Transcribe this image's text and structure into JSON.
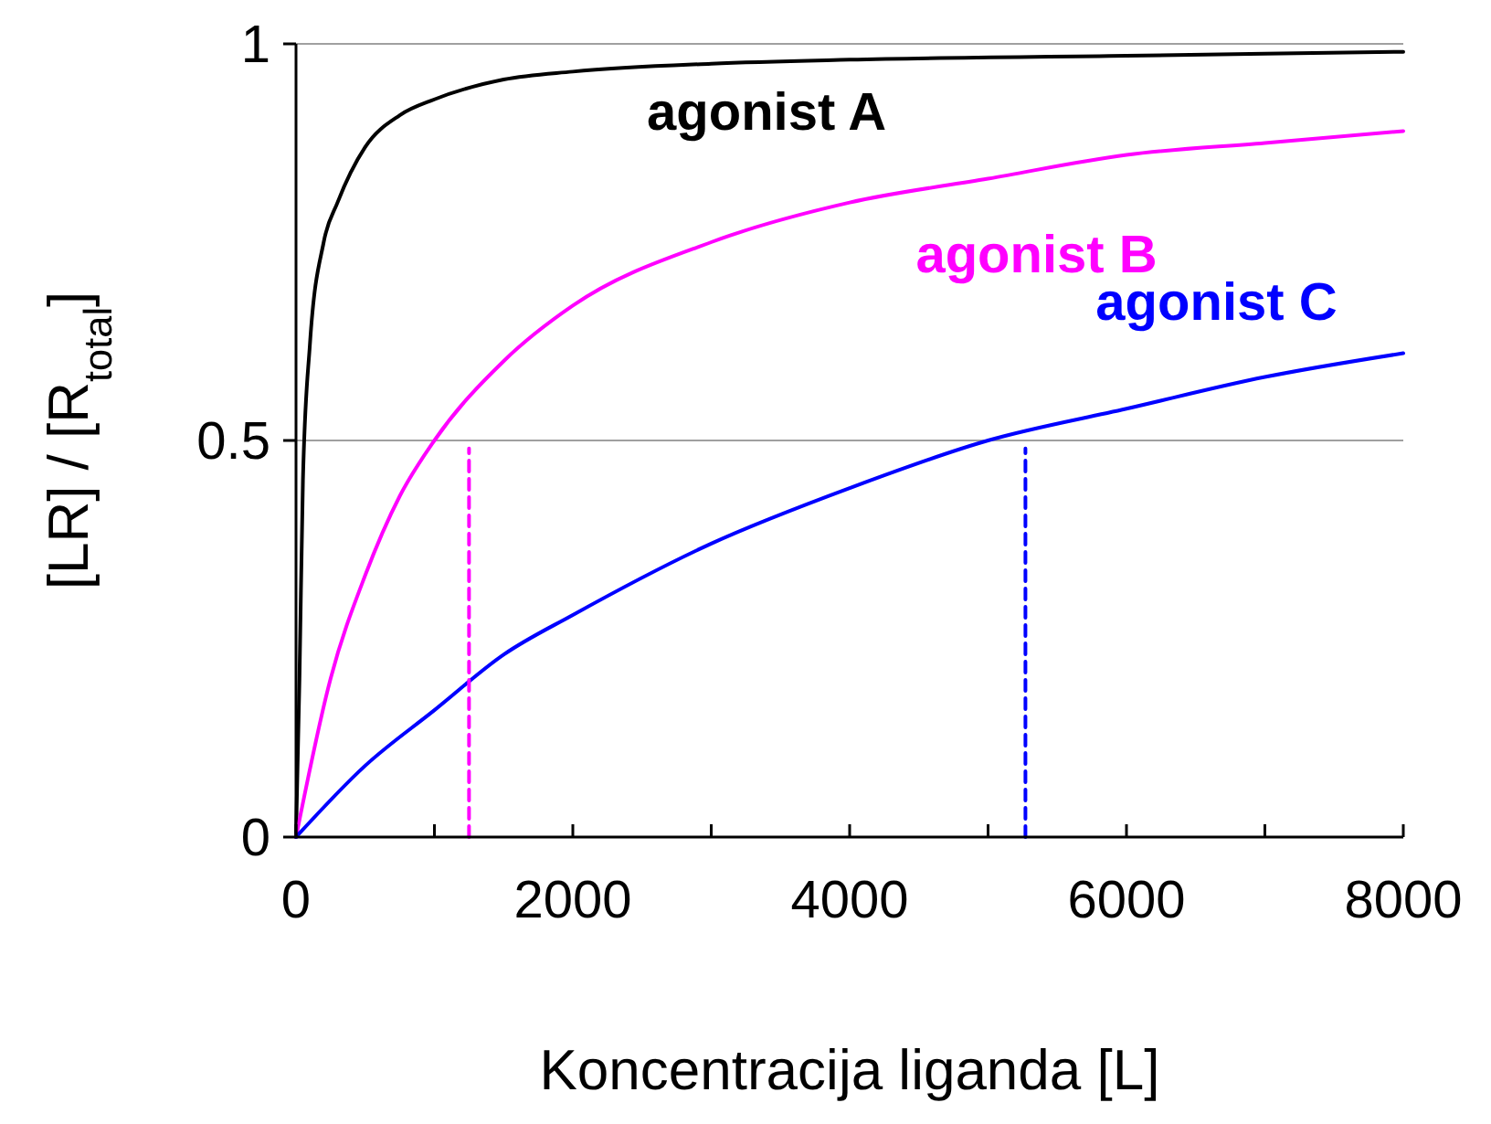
{
  "chart_data": {
    "type": "line",
    "xlabel": "Koncentracija liganda [L]",
    "ylabel": "[LR] / [R$_{total}$]",
    "xlim": [
      0,
      8000
    ],
    "ylim": [
      0,
      1
    ],
    "xticks": [
      0,
      {
        "value": 1000,
        "label": null
      },
      2000,
      {
        "value": 3000,
        "label": null
      },
      4000,
      {
        "value": 5000,
        "label": null
      },
      6000,
      {
        "value": 7000,
        "label": null
      },
      8000
    ],
    "yticks": [
      0,
      0.5,
      1
    ],
    "grid": "y",
    "legend": false,
    "marker": "none",
    "series": [
      {
        "name": "agonist A",
        "color": "#000000",
        "x": [
          0,
          25,
          50,
          100,
          200,
          300,
          500,
          750,
          1000,
          1500,
          2000,
          3000,
          4000,
          6000,
          8000
        ],
        "values": [
          0,
          0.2,
          0.45,
          0.62,
          0.75,
          0.8,
          0.87,
          0.91,
          0.93,
          0.955,
          0.965,
          0.975,
          0.98,
          0.985,
          0.99
        ]
      },
      {
        "name": "agonist B",
        "color": "#ff00ff",
        "x": [
          0,
          250,
          500,
          750,
          1000,
          1500,
          2000,
          3000,
          4000,
          5000,
          6000,
          7000,
          8000
        ],
        "values": [
          0,
          0.2,
          0.33,
          0.43,
          0.5,
          0.6,
          0.67,
          0.75,
          0.8,
          0.83,
          0.86,
          0.875,
          0.89
        ]
      },
      {
        "name": "agonist C",
        "color": "#0000ff",
        "x": [
          0,
          500,
          1000,
          1500,
          2000,
          3000,
          4000,
          5000,
          6000,
          7000,
          8000
        ],
        "values": [
          0,
          0.09,
          0.16,
          0.23,
          0.28,
          0.37,
          0.44,
          0.5,
          0.54,
          0.58,
          0.61
        ]
      },
      {
        "color": "#ff00ff",
        "line_style": "dashed",
        "x": [
          1250,
          1250
        ],
        "values": [
          0,
          0.49
        ]
      },
      {
        "color": "#0000ff",
        "line_style": "dashed",
        "x": [
          5270,
          5270
        ],
        "values": [
          0,
          0.49
        ]
      }
    ]
  }
}
